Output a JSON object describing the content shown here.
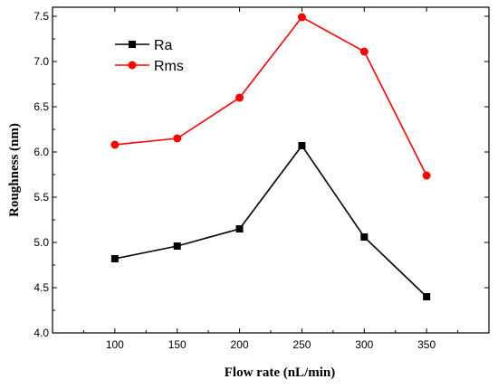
{
  "chart_data": {
    "type": "line",
    "title": "",
    "xlabel": "Flow rate (nL/min)",
    "ylabel": "Roughness (nm)",
    "x": [
      100,
      150,
      200,
      250,
      300,
      350
    ],
    "xticks": [
      "100",
      "150",
      "200",
      "250",
      "300",
      "350"
    ],
    "xlim": [
      50,
      400
    ],
    "yticks": [
      "4.0",
      "4.5",
      "5.0",
      "5.5",
      "6.0",
      "6.5",
      "7.0",
      "7.5"
    ],
    "ylim": [
      4.0,
      7.6
    ],
    "grid": false,
    "legend_position": "top-left",
    "series": [
      {
        "name": "Ra",
        "color": "#000000",
        "marker": "square",
        "values": [
          4.82,
          4.96,
          5.15,
          6.07,
          5.06,
          4.4
        ]
      },
      {
        "name": "Rms",
        "color": "#ff0000",
        "marker": "circle",
        "values": [
          6.08,
          6.15,
          6.6,
          7.49,
          7.11,
          5.74
        ]
      }
    ]
  }
}
